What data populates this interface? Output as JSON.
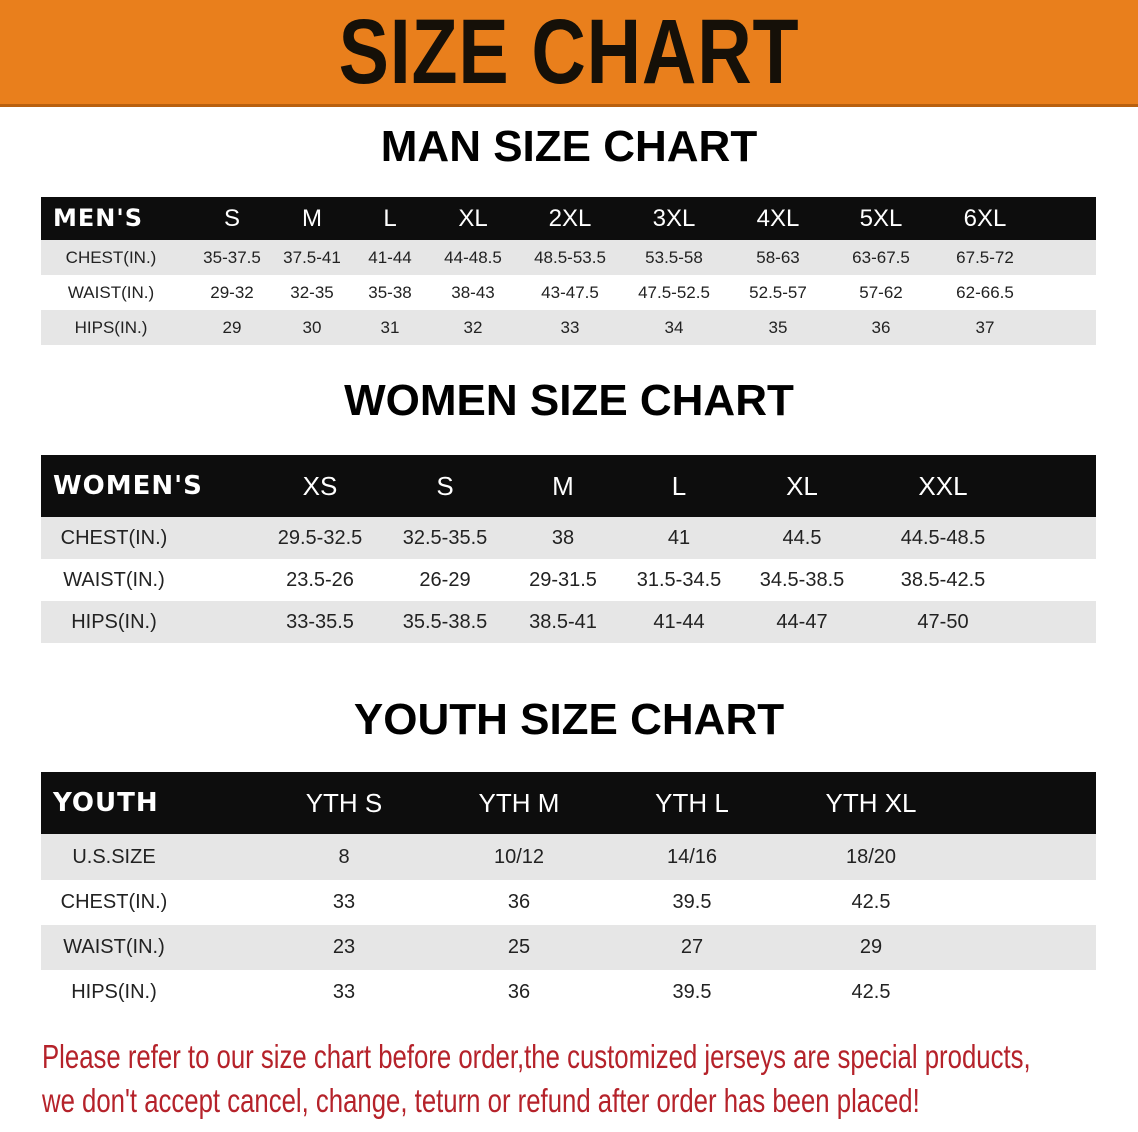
{
  "banner_title": "SIZE CHART",
  "colors": {
    "banner": "#e97f1c",
    "header_row": "#0d0d0d",
    "note_text": "#b5222a"
  },
  "men": {
    "title": "MAN SIZE CHART",
    "header": [
      "MEN'S",
      "S",
      "M",
      "L",
      "XL",
      "2XL",
      "3XL",
      "4XL",
      "5XL",
      "6XL"
    ],
    "rows": [
      [
        "CHEST(IN.)",
        "35-37.5",
        "37.5-41",
        "41-44",
        "44-48.5",
        "48.5-53.5",
        "53.5-58",
        "58-63",
        "63-67.5",
        "67.5-72"
      ],
      [
        "WAIST(IN.)",
        "29-32",
        "32-35",
        "35-38",
        "38-43",
        "43-47.5",
        "47.5-52.5",
        "52.5-57",
        "57-62",
        "62-66.5"
      ],
      [
        "HIPS(IN.)",
        "29",
        "30",
        "31",
        "32",
        "33",
        "34",
        "35",
        "36",
        "37"
      ]
    ]
  },
  "women": {
    "title": "WOMEN SIZE CHART",
    "header": [
      "WOMEN'S",
      "XS",
      "S",
      "M",
      "L",
      "XL",
      "XXL"
    ],
    "rows": [
      [
        "CHEST(IN.)",
        "29.5-32.5",
        "32.5-35.5",
        "38",
        "41",
        "44.5",
        "44.5-48.5"
      ],
      [
        "WAIST(IN.)",
        "23.5-26",
        "26-29",
        "29-31.5",
        "31.5-34.5",
        "34.5-38.5",
        "38.5-42.5"
      ],
      [
        "HIPS(IN.)",
        "33-35.5",
        "35.5-38.5",
        "38.5-41",
        "41-44",
        "44-47",
        "47-50"
      ]
    ]
  },
  "youth": {
    "title": "YOUTH SIZE CHART",
    "header": [
      "YOUTH",
      "YTH S",
      "YTH M",
      "YTH L",
      "YTH XL"
    ],
    "rows": [
      [
        "U.S.SIZE",
        "8",
        "10/12",
        "14/16",
        "18/20"
      ],
      [
        "CHEST(IN.)",
        "33",
        "36",
        "39.5",
        "42.5"
      ],
      [
        "WAIST(IN.)",
        "23",
        "25",
        "27",
        "29"
      ],
      [
        "HIPS(IN.)",
        "33",
        "36",
        "39.5",
        "42.5"
      ]
    ]
  },
  "note": {
    "line1": "Please refer to our size chart before order,the customized jerseys are special products,",
    "line2": "we don't accept cancel, change, teturn or refund after order has been placed!"
  }
}
